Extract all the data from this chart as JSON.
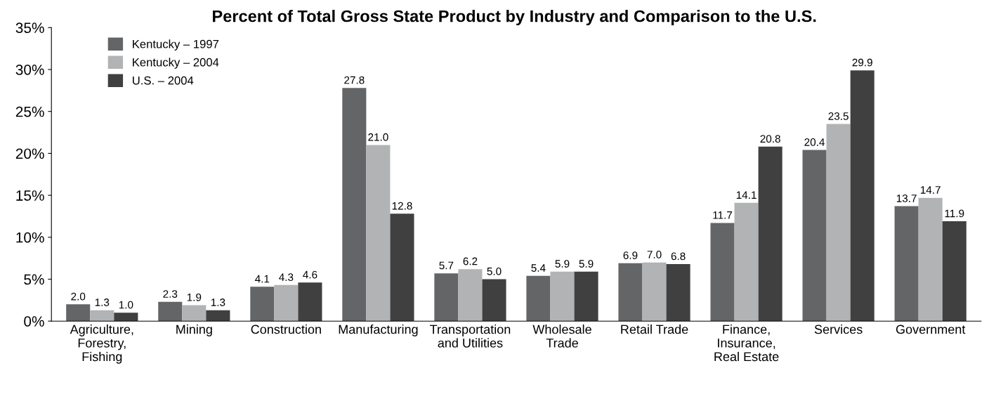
{
  "chart_data": {
    "type": "bar",
    "title": "Percent of Total Gross State Product by Industry and Comparison to the U.S.",
    "categories": [
      "Agriculture,\nForestry,\nFishing",
      "Mining",
      "Construction",
      "Manufacturing",
      "Transportation\nand Utilities",
      "Wholesale\nTrade",
      "Retail Trade",
      "Finance,\nInsurance,\nReal Estate",
      "Services",
      "Government"
    ],
    "series": [
      {
        "name": "Kentucky – 1997",
        "color": "#646567",
        "values": [
          2.0,
          2.3,
          4.1,
          27.8,
          5.7,
          5.4,
          6.9,
          11.7,
          20.4,
          13.7
        ],
        "value_labels": [
          "2.0",
          "2.3",
          "4.1",
          "27.8",
          "5.7",
          "5.4",
          "6.9",
          "11.7",
          "20.4",
          "13.7"
        ]
      },
      {
        "name": "Kentucky – 2004",
        "color": "#b1b3b5",
        "values": [
          1.3,
          1.9,
          4.3,
          21.0,
          6.2,
          5.9,
          7.0,
          14.1,
          23.5,
          14.7
        ],
        "value_labels": [
          "1.3",
          "1.9",
          "4.3",
          "21.0",
          "6.2",
          "5.9",
          "7.0",
          "14.1",
          "23.5",
          "14.7"
        ]
      },
      {
        "name": "U.S. – 2004",
        "color": "#404041",
        "values": [
          1.0,
          1.3,
          4.6,
          12.8,
          5.0,
          5.9,
          6.8,
          20.8,
          29.9,
          11.9
        ],
        "value_labels": [
          "1.0",
          "1.3",
          "4.6",
          "12.8",
          "5.0",
          "5.9",
          "6.8",
          "20.8",
          "29.9",
          "11.9"
        ]
      }
    ],
    "ylim": [
      0,
      35
    ],
    "yticks": [
      {
        "value": 0,
        "label": "0%"
      },
      {
        "value": 5,
        "label": "5%"
      },
      {
        "value": 10,
        "label": "10%"
      },
      {
        "value": 15,
        "label": "15%"
      },
      {
        "value": 20,
        "label": "20%"
      },
      {
        "value": 25,
        "label": "25%"
      },
      {
        "value": 30,
        "label": "30%"
      },
      {
        "value": 35,
        "label": "35%"
      }
    ],
    "grid": false,
    "legend": "top left"
  }
}
